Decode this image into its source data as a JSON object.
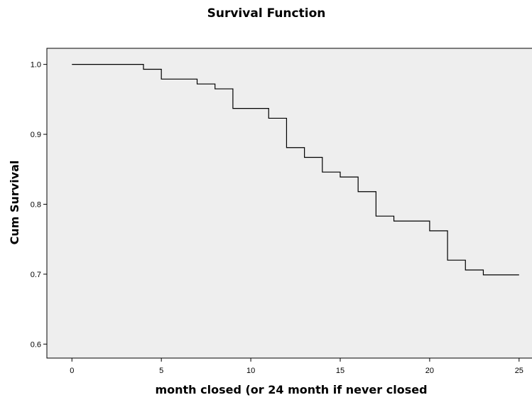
{
  "chart_data": {
    "type": "line",
    "title": "Survival Function",
    "xlabel": "month closed (or 24 month if never closed",
    "ylabel": "Cum Survival",
    "xlim": [
      -1.4,
      26
    ],
    "ylim": [
      0.58,
      1.023
    ],
    "xticks": [
      0,
      5,
      10,
      15,
      20,
      25
    ],
    "xtick_labels": [
      "0",
      "5",
      "10",
      "15",
      "20",
      "25"
    ],
    "yticks": [
      0.6,
      0.7,
      0.8,
      0.9,
      1.0
    ],
    "ytick_labels": [
      "0.6",
      "0.7",
      "0.8",
      "0.9",
      "1.0"
    ],
    "grid": false,
    "series": [
      {
        "step": "post",
        "x": [
          0,
          4,
          5,
          7,
          8,
          9,
          11,
          12,
          13,
          14,
          15,
          16,
          17,
          18,
          20,
          21,
          22,
          23,
          25
        ],
        "y": [
          1.0,
          0.993,
          0.979,
          0.972,
          0.965,
          0.937,
          0.923,
          0.881,
          0.867,
          0.846,
          0.839,
          0.818,
          0.783,
          0.776,
          0.762,
          0.72,
          0.706,
          0.699,
          0.699
        ]
      }
    ],
    "colors": {
      "line": "#000000",
      "plot_background": "#eeeeee"
    }
  }
}
